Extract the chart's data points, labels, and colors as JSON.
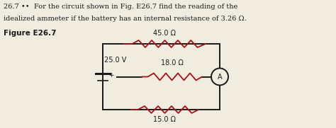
{
  "title_line1": "26.7 ••  For the circuit shown in Fig. E26.7 find the reading of the",
  "title_line2": "idealized ammeter if the battery has an internal resistance of 3.26 Ω.",
  "figure_label": "Figure E26.7",
  "top_resistor_label": "45.0 Ω",
  "middle_resistor_label": "18.0 Ω",
  "bottom_resistor_label": "15.0 Ω",
  "battery_label": "25.0 V",
  "plus_sign": "+",
  "ammeter_label": "A",
  "bg_color": "#f0ece0",
  "circuit_color": "#1a1a1a",
  "resistor_color": "#aa1111",
  "text_color": "#1a1a1a"
}
